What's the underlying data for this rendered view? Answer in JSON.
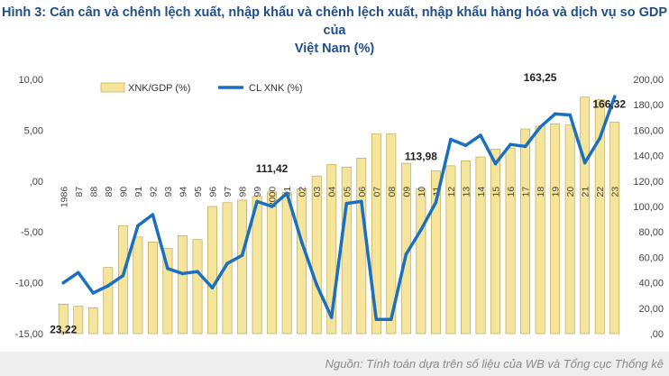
{
  "title_line1": "Hình 3: Cán cân và chênh lệch xuất, nhập khẩu và chênh lệch xuất, nhập khẩu hàng hóa và dịch vụ so GDP của",
  "title_line2": "Việt Nam (%)",
  "source": "Nguồn: Tính toán dựa trên số liệu của WB và Tổng cục Thống kê",
  "chart_data": {
    "type": "bar",
    "categories": [
      "1986",
      "87",
      "88",
      "89",
      "90",
      "91",
      "92",
      "93",
      "94",
      "95",
      "96",
      "97",
      "98",
      "99",
      "2000",
      "01",
      "02",
      "03",
      "04",
      "05",
      "06",
      "07",
      "08",
      "09",
      "10",
      "11",
      "12",
      "13",
      "14",
      "15",
      "16",
      "17",
      "18",
      "19",
      "20",
      "21",
      "22",
      "23"
    ],
    "left_axis": {
      "min": -15,
      "max": 10,
      "ticks": [
        "10,00",
        "5,00",
        ",00",
        "-5,00",
        "-10,00",
        "-15,00"
      ],
      "tick_values": [
        10,
        5,
        0,
        -5,
        -10,
        -15
      ]
    },
    "right_axis": {
      "min": 0,
      "max": 200,
      "ticks": [
        "200,00",
        "180,00",
        "160,00",
        "140,00",
        "120,00",
        "100,00",
        "80,00",
        "60,00",
        "40,00",
        "20,00",
        ",00"
      ],
      "tick_values": [
        200,
        180,
        160,
        140,
        120,
        100,
        80,
        60,
        40,
        20,
        0
      ]
    },
    "series": [
      {
        "name": "XNK/GDP (%)",
        "type": "bar",
        "axis": "right",
        "color": "#f5e49c",
        "values": [
          23.22,
          21.5,
          20.3,
          52,
          85,
          76,
          72,
          67,
          77,
          74,
          100,
          103,
          105,
          108,
          111.42,
          111,
          114,
          124,
          133,
          131,
          138,
          157,
          157,
          134,
          113.98,
          128,
          132,
          136,
          139,
          145,
          146,
          161,
          163.25,
          165,
          164,
          186,
          184,
          166.32
        ]
      },
      {
        "name": "CL XNK (%)",
        "type": "line",
        "axis": "left",
        "color": "#1a6fbf",
        "values": [
          -10.0,
          -9.0,
          -11.0,
          -10.3,
          -9.3,
          -4.4,
          -3.3,
          -8.6,
          -9.1,
          -8.9,
          -10.5,
          -8.1,
          -7.3,
          -2.0,
          -2.5,
          -1.2,
          -6.0,
          -10.2,
          -13.4,
          -2.2,
          -2.0,
          -13.6,
          -13.6,
          -7.2,
          -4.8,
          -2.1,
          4.1,
          3.5,
          4.5,
          1.7,
          3.6,
          3.4,
          5.3,
          6.6,
          6.5,
          1.8,
          4.2,
          8.3
        ]
      }
    ],
    "data_labels": [
      {
        "category": "1986",
        "series": "XNK/GDP (%)",
        "text": "23,22"
      },
      {
        "category": "2000",
        "series": "XNK/GDP (%)",
        "text": "111,42"
      },
      {
        "category": "10",
        "series": "XNK/GDP (%)",
        "text": "113,98"
      },
      {
        "category": "18",
        "series": "XNK/GDP (%)",
        "text": "163,25"
      },
      {
        "category": "23",
        "series": "XNK/GDP (%)",
        "text": "166,32"
      }
    ],
    "legend": "top-left",
    "grid": false
  }
}
